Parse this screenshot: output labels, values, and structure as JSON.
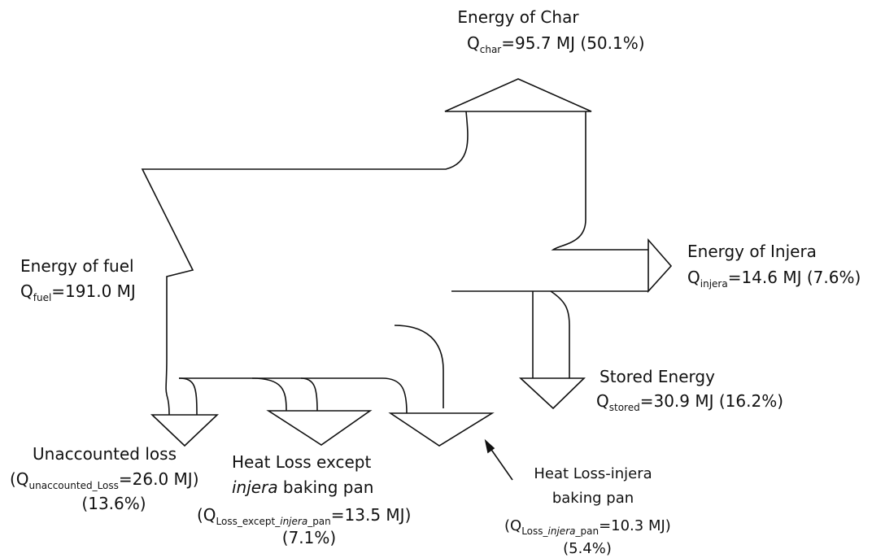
{
  "nodes": [
    {
      "label": "Energy of Char",
      "q": "Q",
      "sub": "char",
      "value": "=95.7 MJ (50.1%)"
    },
    {
      "label": "Energy of fuel",
      "q": "Q",
      "sub": "fuel",
      "value": "=191.0 MJ"
    },
    {
      "label": "Energy of Injera",
      "q": "Q",
      "sub": "injera",
      "value": "=14.6 MJ (7.6%)"
    },
    {
      "label": "Stored Energy",
      "q": "Q",
      "sub": "stored",
      "value": "=30.9 MJ (16.2%)"
    },
    {
      "label": "Unaccounted loss",
      "q": "(Q",
      "sub": "unaccounted_Loss",
      "value": "=26.0 MJ)",
      "share": "(13.6%)"
    },
    {
      "label": "Heat Loss except",
      "label2": [
        "injera",
        " baking pan"
      ],
      "q": "(Q",
      "sub": [
        "Loss_except_",
        "injera",
        "_pan"
      ],
      "value": "=13.5 MJ)",
      "share": "(7.1%)"
    },
    {
      "label": "Heat Loss-injera",
      "label2": [
        "baking pan"
      ],
      "q": "(Q",
      "sub": [
        "Loss_",
        "injera",
        "_pan"
      ],
      "value": "=10.3 MJ)",
      "share": "(5.4%)"
    }
  ]
}
